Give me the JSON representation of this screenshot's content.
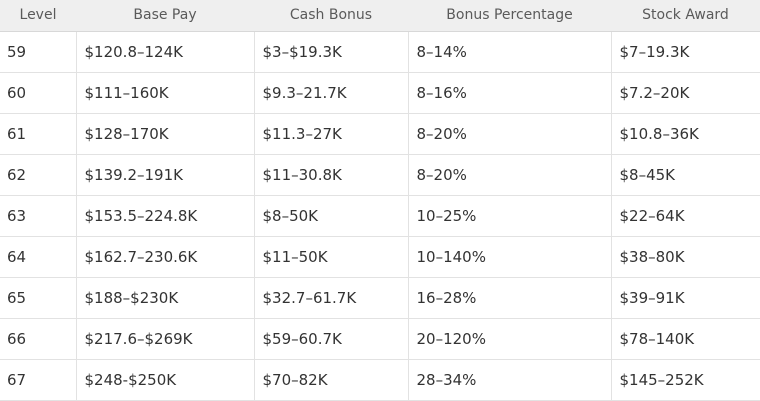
{
  "table": {
    "headers": [
      "Level",
      "Base Pay",
      "Cash Bonus",
      "Bonus Percentage",
      "Stock Award"
    ],
    "rows": [
      [
        "59",
        "$120.8–124K",
        "$3–$19.3K",
        "8–14%",
        "$7–19.3K"
      ],
      [
        "60",
        "$111–160K",
        "$9.3–21.7K",
        "8–16%",
        "$7.2–20K"
      ],
      [
        "61",
        "$128–170K",
        "$11.3–27K",
        "8–20%",
        "$10.8–36K"
      ],
      [
        "62",
        "$139.2–191K",
        "$11–30.8K",
        "8–20%",
        "$8–45K"
      ],
      [
        "63",
        "$153.5–224.8K",
        "$8–50K",
        "10–25%",
        "$22–64K"
      ],
      [
        "64",
        "$162.7–230.6K",
        "$11–50K",
        "10–140%",
        "$38–80K"
      ],
      [
        "65",
        "$188–$230K",
        "$32.7–61.7K",
        "16–28%",
        "$39–91K"
      ],
      [
        "66",
        "$217.6–$269K",
        "$59–60.7K",
        "20–120%",
        "$78–140K"
      ],
      [
        "67",
        "$248-$250K",
        "$70–82K",
        "28–34%",
        "$145–252K"
      ]
    ]
  }
}
